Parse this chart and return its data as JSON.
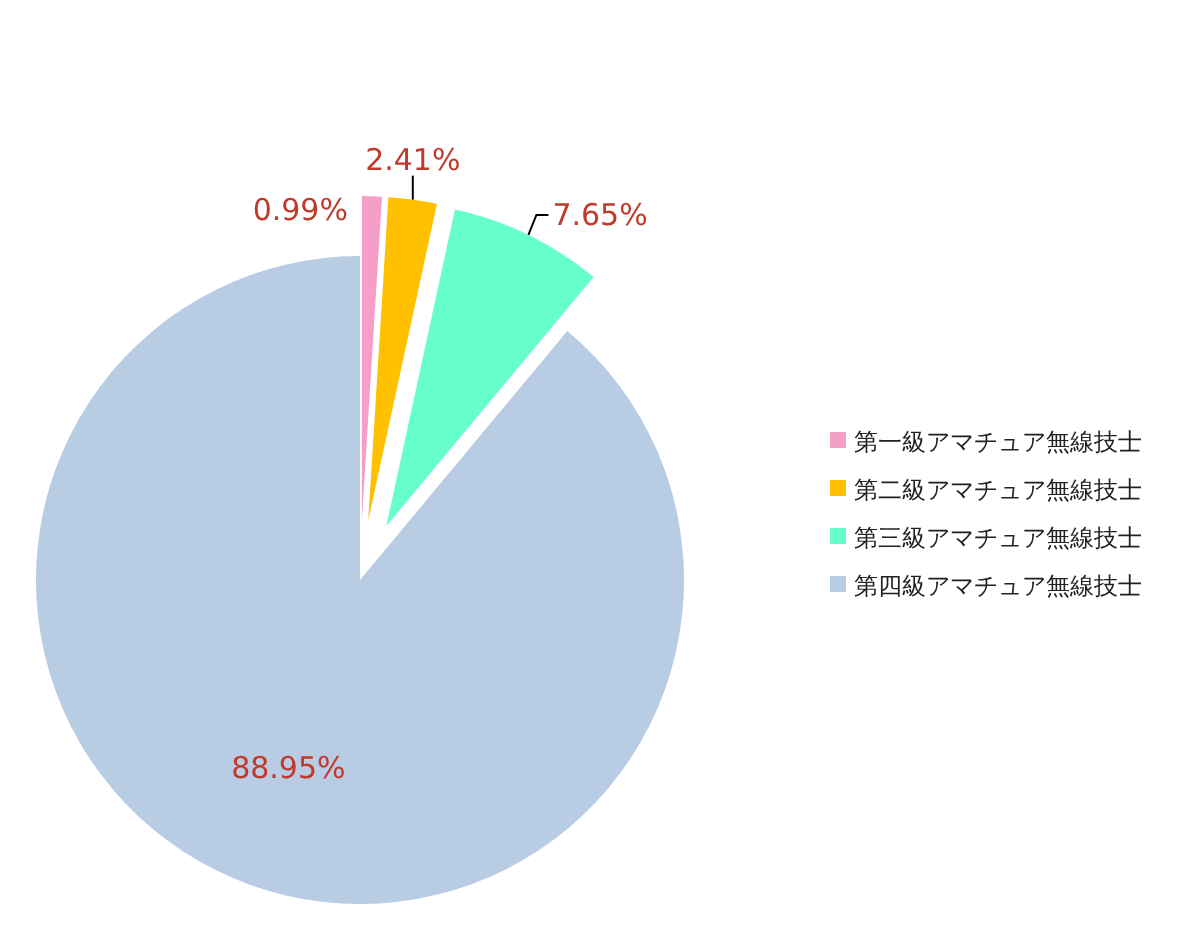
{
  "chart_data": {
    "type": "pie",
    "categories": [
      "第一級アマチュア無線技士",
      "第二級アマチュア無線技士",
      "第三級アマチュア無線技士",
      "第四級アマチュア無線技士"
    ],
    "values": [
      0.99,
      2.41,
      7.65,
      88.95
    ],
    "colors": [
      "#f59ec8",
      "#ffc000",
      "#66ffcc",
      "#b8cce4"
    ],
    "value_labels": [
      "0.99%",
      "2.41%",
      "7.65%",
      "88.95%"
    ],
    "legend": "right"
  }
}
